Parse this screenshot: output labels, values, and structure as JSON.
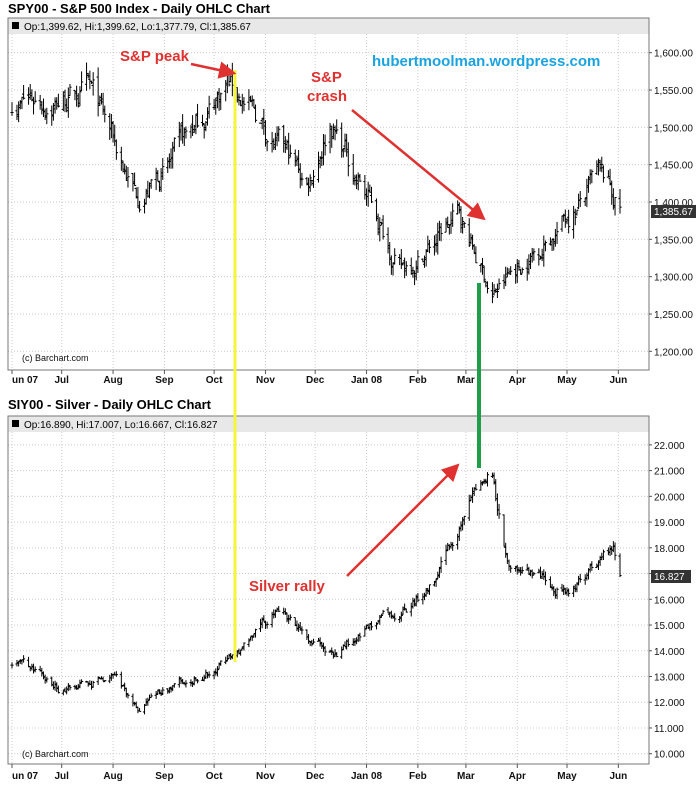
{
  "watermark": "hubertmoolman.wordpress.com",
  "annotations": {
    "sp_peak": "S&P peak",
    "sp_crash_line1": "S&P",
    "sp_crash_line2": "crash",
    "silver_rally": "Silver rally"
  },
  "colors": {
    "annotation": "#e03131",
    "watermark": "#1aa3e0",
    "peak_line": "#f5f53a",
    "crash_line": "#1e9e4a",
    "bars": "#000000",
    "grid": "#cccccc"
  },
  "chart_data": [
    {
      "type": "ohlc",
      "title": "SPY00 - S&P 500 Index - Daily OHLC Chart",
      "header": "Op:1,399.62, Hi:1,399.62, Lo:1,377.79, Cl:1,385.67",
      "credit": "(c) Barchart.com",
      "last_value_label": "1,385.67",
      "last_value": 1385.67,
      "ylim": [
        1175,
        1625
      ],
      "y_ticks": [
        1200,
        1250,
        1300,
        1350,
        1400,
        1450,
        1500,
        1550,
        1600
      ],
      "y_tick_labels": [
        "1,200.00",
        "1,250.00",
        "1,300.00",
        "1,350.00",
        "1,400.00",
        "1,450.00",
        "1,500.00",
        "1,550.00",
        "1,600.00"
      ],
      "x_labels": [
        "un 07",
        "Jul",
        "Aug",
        "Sep",
        "Oct",
        "Nov",
        "Dec",
        "Jan 08",
        "Feb",
        "Mar",
        "Apr",
        "May",
        "Jun"
      ],
      "grid": true,
      "key_points": [
        {
          "date": "2007-06-01",
          "close": 1535
        },
        {
          "date": "2007-07-16",
          "close": 1550
        },
        {
          "date": "2007-08-15",
          "close": 1410
        },
        {
          "date": "2007-09-10",
          "close": 1460
        },
        {
          "date": "2007-10-09",
          "close": 1565
        },
        {
          "date": "2007-11-26",
          "close": 1420
        },
        {
          "date": "2007-12-10",
          "close": 1515
        },
        {
          "date": "2008-01-22",
          "close": 1310
        },
        {
          "date": "2008-02-26",
          "close": 1380
        },
        {
          "date": "2008-03-17",
          "close": 1275
        },
        {
          "date": "2008-05-19",
          "close": 1425
        },
        {
          "date": "2008-06-02",
          "close": 1385
        }
      ]
    },
    {
      "type": "ohlc",
      "title": "SIY00 - Silver - Daily OHLC Chart",
      "header": "Op:16.890, Hi:17.007, Lo:16.667, Cl:16.827",
      "credit": "(c) Barchart.com",
      "last_value_label": "16.827",
      "last_value": 16.827,
      "ylim": [
        9.6,
        22.5
      ],
      "y_ticks": [
        10,
        11,
        12,
        13,
        14,
        15,
        16,
        17,
        18,
        19,
        20,
        21,
        22
      ],
      "y_tick_labels": [
        "10.000",
        "11.000",
        "12.000",
        "13.000",
        "14.000",
        "15.000",
        "16.000",
        "17.000",
        "18.000",
        "19.000",
        "20.000",
        "21.000",
        "22.000"
      ],
      "x_labels": [
        "un 07",
        "Jul",
        "Aug",
        "Sep",
        "Oct",
        "Nov",
        "Dec",
        "Jan 08",
        "Feb",
        "Mar",
        "Apr",
        "May",
        "Jun"
      ],
      "grid": true,
      "key_points": [
        {
          "date": "2007-06-01",
          "close": 13.6
        },
        {
          "date": "2007-07-05",
          "close": 12.4
        },
        {
          "date": "2007-08-01",
          "close": 13.0
        },
        {
          "date": "2007-08-16",
          "close": 11.7
        },
        {
          "date": "2007-09-14",
          "close": 12.9
        },
        {
          "date": "2007-10-15",
          "close": 13.8
        },
        {
          "date": "2007-11-07",
          "close": 15.4
        },
        {
          "date": "2007-12-14",
          "close": 14.0
        },
        {
          "date": "2008-02-10",
          "close": 16.5
        },
        {
          "date": "2008-03-05",
          "close": 19.9
        },
        {
          "date": "2008-03-17",
          "close": 20.7
        },
        {
          "date": "2008-03-27",
          "close": 17.0
        },
        {
          "date": "2008-05-04",
          "close": 16.4
        },
        {
          "date": "2008-05-29",
          "close": 17.9
        },
        {
          "date": "2008-06-02",
          "close": 16.8
        }
      ]
    }
  ]
}
